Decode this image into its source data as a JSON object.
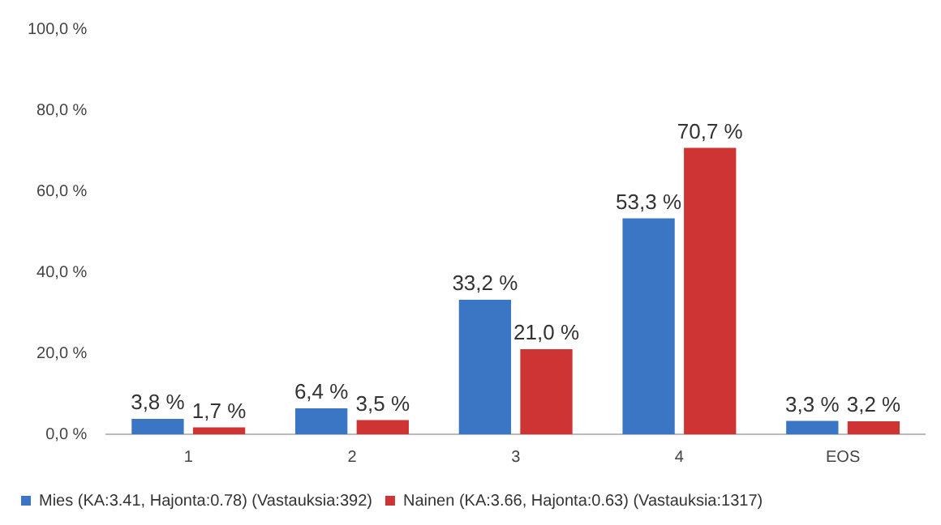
{
  "chart_data": {
    "type": "bar",
    "categories": [
      "1",
      "2",
      "3",
      "4",
      "EOS"
    ],
    "series": [
      {
        "name": "Mies (KA:3.41, Hajonta:0.78) (Vastauksia:392)",
        "color": "#3a76c4",
        "values": [
          3.8,
          6.4,
          33.2,
          53.3,
          3.3
        ],
        "value_labels": [
          "3,8 %",
          "6,4 %",
          "33,2 %",
          "53,3 %",
          "3,3 %"
        ]
      },
      {
        "name": "Nainen (KA:3.66, Hajonta:0.63) (Vastauksia:1317)",
        "color": "#cf3434",
        "values": [
          1.7,
          3.5,
          21.0,
          70.7,
          3.2
        ],
        "value_labels": [
          "1,7 %",
          "3,5 %",
          "21,0 %",
          "70,7 %",
          "3,2 %"
        ]
      }
    ],
    "ylim": [
      0,
      100
    ],
    "yticks": [
      {
        "value": 0,
        "label": "0,0 %"
      },
      {
        "value": 20,
        "label": "20,0 %"
      },
      {
        "value": 40,
        "label": "40,0 %"
      },
      {
        "value": 60,
        "label": "60,0 %"
      },
      {
        "value": 80,
        "label": "80,0 %"
      },
      {
        "value": 100,
        "label": "100,0 %"
      }
    ],
    "grid": false,
    "legend": "bottom left"
  }
}
